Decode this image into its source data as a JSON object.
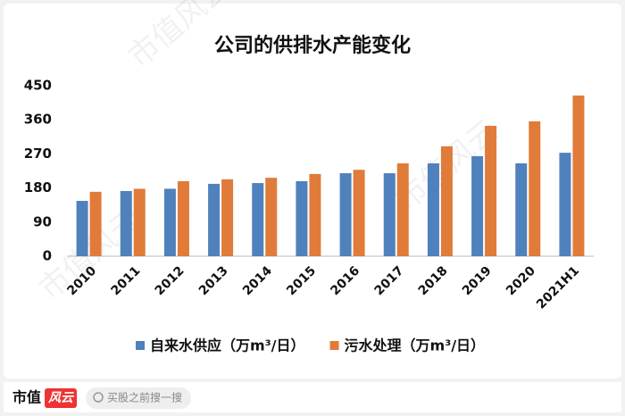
{
  "chart_data": {
    "type": "bar",
    "title": "公司的供排水产能变化",
    "categories": [
      "2010",
      "2011",
      "2012",
      "2013",
      "2014",
      "2015",
      "2016",
      "2017",
      "2018",
      "2019",
      "2020",
      "2021H1"
    ],
    "series": [
      {
        "name": "自来水供应（万m³/日）",
        "color": "#4f81bd",
        "values": [
          146,
          172,
          178,
          191,
          193,
          198,
          219,
          219,
          245,
          264,
          245,
          273
        ]
      },
      {
        "name": "污水处理（万m³/日）",
        "color": "#e07b39",
        "values": [
          170,
          178,
          198,
          203,
          207,
          217,
          228,
          245,
          290,
          344,
          356,
          424
        ]
      }
    ],
    "ylim": [
      0,
      450
    ],
    "yticks": [
      0,
      90,
      180,
      270,
      360,
      450
    ],
    "grid": false,
    "legend": "bottom"
  },
  "footer": {
    "brand": "市值",
    "brand_logo": "风云",
    "search": "买股之前搜一搜"
  },
  "watermark": "市值风云"
}
